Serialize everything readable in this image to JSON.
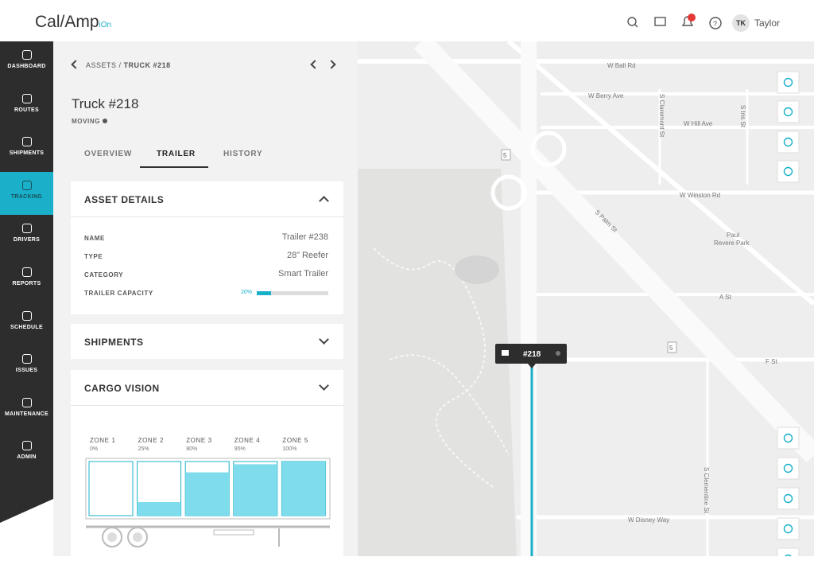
{
  "header": {
    "logo": "Cal/Amp",
    "logo_suffix": "iOn",
    "user_initials": "TK",
    "user_name": "Taylor"
  },
  "sidebar": {
    "items": [
      "DASHBOARD",
      "ROUTES",
      "SHIPMENTS",
      "TRACKING",
      "DRIVERS",
      "REPORTS",
      "SCHEDULE",
      "ISSUES",
      "MAINTENANCE",
      "ADMIN"
    ],
    "active_index": 3
  },
  "panel": {
    "breadcrumb": [
      "ASSETS",
      "TRUCK #218"
    ],
    "breadcrumb_separator": "/",
    "title": "Truck #218",
    "status": "MOVING",
    "tabs": [
      "OVERVIEW",
      "TRAILER",
      "HISTORY"
    ],
    "active_tab": 1,
    "asset_details": {
      "title": "ASSET DETAILS",
      "rows": [
        [
          "NAME",
          "Trailer #238"
        ],
        [
          "TYPE",
          "28” Reefer"
        ],
        [
          "CATEGORY",
          "Smart Trailer"
        ]
      ],
      "capacity": {
        "label": "TRAILER CAPACITY",
        "value": 20,
        "value_label": "20%"
      }
    },
    "shipments": {
      "title": "SHIPMENTS"
    },
    "cargo_vision": {
      "title": "CARGO VISION",
      "zones": [
        {
          "name": "ZONE 1",
          "value": 0,
          "value_label": "0%"
        },
        {
          "name": "ZONE 2",
          "value": 25,
          "value_label": "25%"
        },
        {
          "name": "ZONE 3",
          "value": 80,
          "value_label": "80%"
        },
        {
          "name": "ZONE 4",
          "value": 95,
          "value_label": "95%"
        },
        {
          "name": "ZONE 5",
          "value": 100,
          "value_label": "100%"
        }
      ]
    }
  },
  "map": {
    "labels": [
      "W Ball Rd",
      "W Berry Ave",
      "S Claremont St",
      "W Hill Ave",
      "S Iris St",
      "W Winston Rd",
      "S Palm St",
      "Paul",
      "Revere Park",
      "A St",
      "F St",
      "S Clementine St",
      "W Disney Way"
    ],
    "shields": [
      "5",
      "5"
    ],
    "vehicle_label": "#218"
  }
}
